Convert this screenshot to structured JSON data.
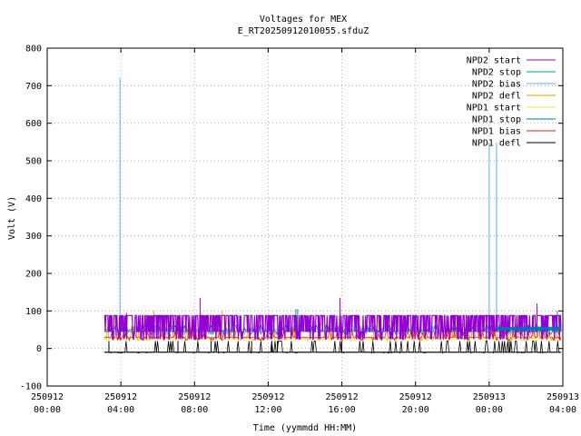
{
  "chart_data": {
    "type": "line",
    "title": "Voltages for MEX",
    "subtitle": "E_RT20250912010055.sfduZ",
    "xlabel": "Time (yymmdd HH:MM)",
    "ylabel": "Volt (V)",
    "xlim_hours": [
      0,
      28
    ],
    "ylim": [
      -100,
      800
    ],
    "yticks": [
      -100,
      0,
      100,
      200,
      300,
      400,
      500,
      600,
      700,
      800
    ],
    "xticks": [
      {
        "h": 0,
        "date": "250912",
        "time": "00:00"
      },
      {
        "h": 4,
        "date": "250912",
        "time": "04:00"
      },
      {
        "h": 8,
        "date": "250912",
        "time": "08:00"
      },
      {
        "h": 12,
        "date": "250912",
        "time": "12:00"
      },
      {
        "h": 16,
        "date": "250912",
        "time": "16:00"
      },
      {
        "h": 20,
        "date": "250912",
        "time": "20:00"
      },
      {
        "h": 24,
        "date": "250913",
        "time": "00:00"
      },
      {
        "h": 28,
        "date": "250913",
        "time": "04:00"
      }
    ],
    "grid": true,
    "legend_position": "top-right",
    "data_start_hour": 3.1,
    "data_end_hour": 27.9,
    "series": [
      {
        "name": "NPD2 start",
        "color": "#9400d3",
        "base": 45,
        "high": 88,
        "low": 25,
        "spikes": [
          [
            4.3,
            95
          ],
          [
            8.3,
            135
          ],
          [
            15.9,
            135
          ],
          [
            26.6,
            120
          ]
        ]
      },
      {
        "name": "NPD2 stop",
        "color": "#009e73",
        "base": 45,
        "high": 55,
        "low": 38,
        "spikes": [
          [
            10.0,
            85
          ],
          [
            13.5,
            105
          ],
          [
            13.6,
            105
          ],
          [
            24.0,
            70
          ],
          [
            27.7,
            100
          ]
        ]
      },
      {
        "name": "NPD2 bias",
        "color": "#56b4e9",
        "base": 45,
        "high": 60,
        "low": 38,
        "spikes": [
          [
            3.95,
            720
          ],
          [
            24.0,
            548
          ],
          [
            24.4,
            548
          ]
        ]
      },
      {
        "name": "NPD2 defl",
        "color": "#e69f00",
        "base": 28,
        "high": 60,
        "low": 22,
        "spikes": [
          [
            5.8,
            100
          ],
          [
            9.5,
            100
          ]
        ]
      },
      {
        "name": "NPD1 start",
        "color": "#f0e442",
        "base": 24,
        "high": 30,
        "low": 22,
        "spikes": []
      },
      {
        "name": "NPD1 stop",
        "color": "#0072b2",
        "base": 50,
        "high": 62,
        "low": 45,
        "spikes": []
      },
      {
        "name": "NPD1 bias",
        "color": "#e51e10",
        "base": 30,
        "high": 45,
        "low": 22,
        "spikes": []
      },
      {
        "name": "NPD1 defl",
        "color": "#000000",
        "base": -10,
        "high": 20,
        "low": -12,
        "spikes": [
          [
            3.35,
            20
          ],
          [
            7.1,
            20
          ],
          [
            8.9,
            20
          ],
          [
            11.1,
            20
          ],
          [
            12.2,
            20
          ],
          [
            12.5,
            20
          ],
          [
            16.0,
            20
          ],
          [
            25.1,
            20
          ]
        ]
      }
    ]
  }
}
